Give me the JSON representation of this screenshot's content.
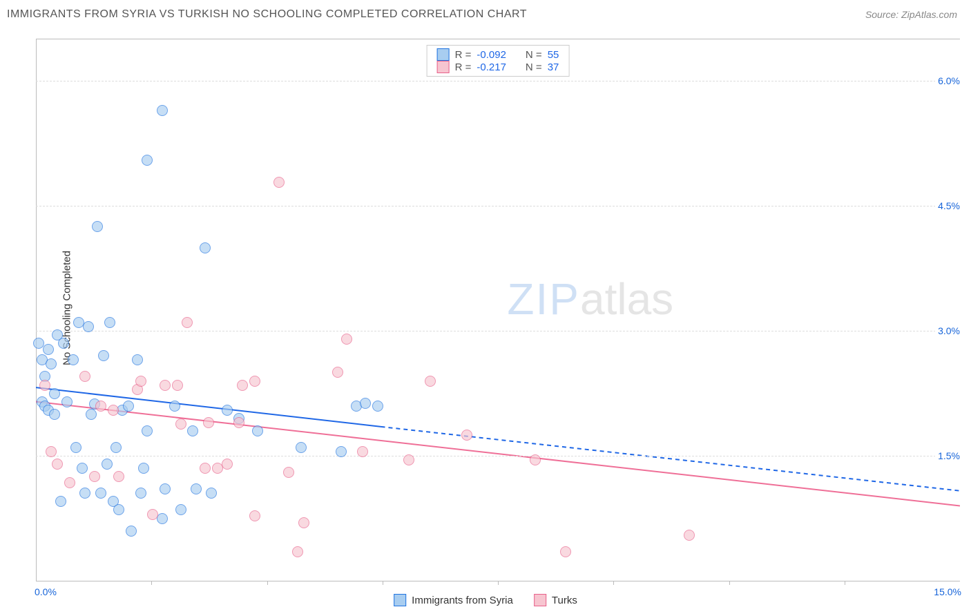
{
  "title": "IMMIGRANTS FROM SYRIA VS TURKISH NO SCHOOLING COMPLETED CORRELATION CHART",
  "source_label": "Source: ZipAtlas.com",
  "ylabel": "No Schooling Completed",
  "watermark_zip": "ZIP",
  "watermark_atlas": "atlas",
  "chart": {
    "type": "scatter",
    "xlim": [
      0.0,
      15.0
    ],
    "ylim": [
      0.0,
      6.5
    ],
    "y_gridlines": [
      1.5,
      3.0,
      4.5,
      6.0
    ],
    "x_tickmarks": [
      1.875,
      3.75,
      5.625,
      7.5,
      9.375,
      11.25,
      13.125
    ],
    "xtick_labels": [
      {
        "v": 0.0,
        "t": "0.0%"
      },
      {
        "v": 15.0,
        "t": "15.0%"
      }
    ],
    "ytick_labels": [
      {
        "v": 1.5,
        "t": "1.5%"
      },
      {
        "v": 3.0,
        "t": "3.0%"
      },
      {
        "v": 4.5,
        "t": "4.5%"
      },
      {
        "v": 6.0,
        "t": "6.0%"
      }
    ],
    "grid_color": "#dddddd",
    "background": "#ffffff",
    "point_radius": 8,
    "point_border_width": 1.5,
    "series": [
      {
        "name": "Immigrants from Syria",
        "fill": "#a8cdf0",
        "stroke": "#1f73e0",
        "fill_opacity": 0.65,
        "R": "-0.092",
        "N": "55",
        "regression": {
          "x1": 0.0,
          "y1": 2.32,
          "x2": 5.6,
          "y2": 1.85,
          "ext_x2": 15.0,
          "ext_y2": 1.08,
          "color": "#1f67e6",
          "width": 2,
          "dash_ext": true
        },
        "points": [
          [
            0.05,
            2.85
          ],
          [
            0.1,
            2.65
          ],
          [
            0.1,
            2.15
          ],
          [
            0.15,
            2.1
          ],
          [
            0.15,
            2.45
          ],
          [
            0.2,
            2.78
          ],
          [
            0.2,
            2.05
          ],
          [
            0.25,
            2.6
          ],
          [
            0.3,
            2.0
          ],
          [
            0.3,
            2.25
          ],
          [
            0.35,
            2.95
          ],
          [
            0.4,
            0.95
          ],
          [
            0.45,
            2.85
          ],
          [
            0.5,
            2.15
          ],
          [
            0.6,
            2.65
          ],
          [
            0.65,
            1.6
          ],
          [
            0.7,
            3.1
          ],
          [
            0.75,
            1.35
          ],
          [
            0.8,
            1.05
          ],
          [
            0.85,
            3.05
          ],
          [
            0.9,
            2.0
          ],
          [
            0.95,
            2.12
          ],
          [
            1.0,
            4.25
          ],
          [
            1.05,
            1.05
          ],
          [
            1.1,
            2.7
          ],
          [
            1.15,
            1.4
          ],
          [
            1.2,
            3.1
          ],
          [
            1.25,
            0.95
          ],
          [
            1.3,
            1.6
          ],
          [
            1.35,
            0.85
          ],
          [
            1.4,
            2.05
          ],
          [
            1.5,
            2.1
          ],
          [
            1.55,
            0.6
          ],
          [
            1.65,
            2.65
          ],
          [
            1.7,
            1.05
          ],
          [
            1.75,
            1.35
          ],
          [
            1.8,
            5.05
          ],
          [
            1.8,
            1.8
          ],
          [
            2.05,
            0.75
          ],
          [
            2.05,
            5.65
          ],
          [
            2.1,
            1.1
          ],
          [
            2.25,
            2.1
          ],
          [
            2.35,
            0.85
          ],
          [
            2.55,
            1.8
          ],
          [
            2.6,
            1.1
          ],
          [
            2.75,
            4.0
          ],
          [
            2.85,
            1.05
          ],
          [
            3.1,
            2.05
          ],
          [
            3.3,
            1.95
          ],
          [
            3.6,
            1.8
          ],
          [
            4.3,
            1.6
          ],
          [
            4.95,
            1.55
          ],
          [
            5.2,
            2.1
          ],
          [
            5.35,
            2.13
          ],
          [
            5.55,
            2.1
          ]
        ]
      },
      {
        "name": "Turks",
        "fill": "#f7c5d0",
        "stroke": "#e8608a",
        "fill_opacity": 0.65,
        "R": "-0.217",
        "N": "37",
        "regression": {
          "x1": 0.0,
          "y1": 2.15,
          "x2": 15.0,
          "y2": 0.9,
          "color": "#ef6f97",
          "width": 2,
          "dash_ext": false
        },
        "points": [
          [
            0.15,
            2.35
          ],
          [
            0.25,
            1.55
          ],
          [
            0.35,
            1.4
          ],
          [
            0.55,
            1.18
          ],
          [
            0.8,
            2.45
          ],
          [
            0.95,
            1.25
          ],
          [
            1.25,
            2.05
          ],
          [
            1.35,
            1.25
          ],
          [
            1.65,
            2.3
          ],
          [
            1.7,
            2.4
          ],
          [
            1.9,
            0.8
          ],
          [
            2.1,
            2.35
          ],
          [
            2.3,
            2.35
          ],
          [
            2.35,
            1.88
          ],
          [
            2.45,
            3.1
          ],
          [
            2.75,
            1.35
          ],
          [
            2.8,
            1.9
          ],
          [
            2.95,
            1.35
          ],
          [
            3.1,
            1.4
          ],
          [
            3.3,
            1.9
          ],
          [
            3.35,
            2.35
          ],
          [
            3.55,
            2.4
          ],
          [
            3.55,
            0.78
          ],
          [
            3.95,
            4.78
          ],
          [
            4.1,
            1.3
          ],
          [
            4.25,
            0.35
          ],
          [
            4.35,
            0.7
          ],
          [
            4.9,
            2.5
          ],
          [
            5.05,
            2.9
          ],
          [
            5.3,
            1.55
          ],
          [
            6.05,
            1.45
          ],
          [
            6.4,
            2.4
          ],
          [
            8.1,
            1.45
          ],
          [
            8.6,
            0.35
          ],
          [
            10.6,
            0.55
          ],
          [
            7.0,
            1.75
          ],
          [
            1.05,
            2.1
          ]
        ]
      }
    ],
    "legend": [
      {
        "label": "Immigrants from Syria",
        "swatch": "sb-blue"
      },
      {
        "label": "Turks",
        "swatch": "sb-pink"
      }
    ],
    "stats_labels": {
      "R": "R =",
      "N": "N ="
    }
  }
}
